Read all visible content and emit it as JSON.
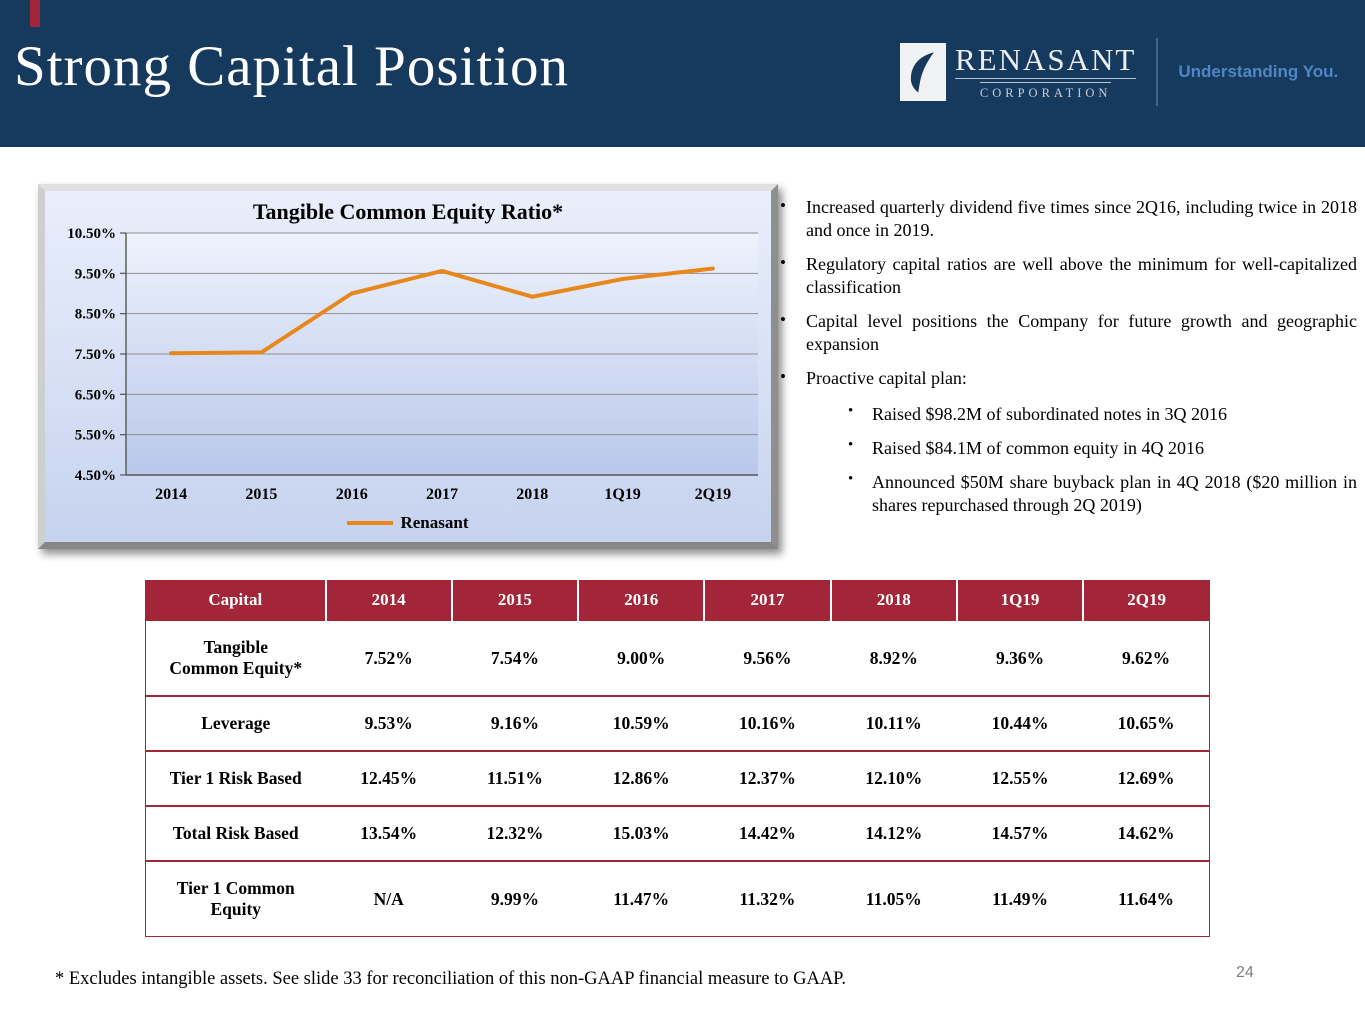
{
  "slide": {
    "title": "Strong Capital Position",
    "page_number": "24",
    "footnote": "* Excludes intangible assets.  See slide 33 for reconciliation of this non-GAAP financial measure to GAAP."
  },
  "logo": {
    "name": "RENASANT",
    "subname": "CORPORATION",
    "tagline": "Understanding You.",
    "icon": "leaf"
  },
  "colors": {
    "header_navy": "#16395e",
    "accent_red": "#a32638",
    "table_header_red": "#a32638",
    "line_orange": "#e8871c",
    "tagline_blue": "#4f87c5"
  },
  "bullets": [
    {
      "text": "Increased quarterly dividend five times since 2Q16, including twice in 2018 and once in 2019."
    },
    {
      "text": "Regulatory capital ratios are well above the minimum for well-capitalized classification"
    },
    {
      "text": "Capital level positions the Company for future growth and geographic expansion"
    },
    {
      "text": "Proactive capital plan:",
      "children": [
        "Raised $98.2M of subordinated notes in 3Q 2016",
        "Raised $84.1M of common equity in 4Q 2016",
        "Announced $50M share buyback plan in 4Q 2018 ($20 million in shares repurchased through 2Q 2019)"
      ]
    }
  ],
  "chart_data": {
    "type": "line",
    "title": "Tangible Common Equity Ratio*",
    "categories": [
      "2014",
      "2015",
      "2016",
      "2017",
      "2018",
      "1Q19",
      "2Q19"
    ],
    "series": [
      {
        "name": "Renasant",
        "values": [
          7.52,
          7.54,
          9.0,
          9.56,
          8.92,
          9.36,
          9.62
        ]
      }
    ],
    "ylim": [
      4.5,
      10.5
    ],
    "ytick_step": 1.0,
    "ytick_labels": [
      "10.50%",
      "9.50%",
      "8.50%",
      "7.50%",
      "6.50%",
      "5.50%",
      "4.50%"
    ],
    "grid": true,
    "legend_position": "bottom",
    "line_color": "#e8871c"
  },
  "table": {
    "headers": [
      "Capital",
      "2014",
      "2015",
      "2016",
      "2017",
      "2018",
      "1Q19",
      "2Q19"
    ],
    "rows": [
      {
        "label": "Tangible\nCommon Equity*",
        "values": [
          "7.52%",
          "7.54%",
          "9.00%",
          "9.56%",
          "8.92%",
          "9.36%",
          "9.62%"
        ]
      },
      {
        "label": "Leverage",
        "values": [
          "9.53%",
          "9.16%",
          "10.59%",
          "10.16%",
          "10.11%",
          "10.44%",
          "10.65%"
        ]
      },
      {
        "label": "Tier 1 Risk Based",
        "values": [
          "12.45%",
          "11.51%",
          "12.86%",
          "12.37%",
          "12.10%",
          "12.55%",
          "12.69%"
        ]
      },
      {
        "label": "Total Risk Based",
        "values": [
          "13.54%",
          "12.32%",
          "15.03%",
          "14.42%",
          "14.12%",
          "14.57%",
          "14.62%"
        ]
      },
      {
        "label": "Tier 1 Common\nEquity",
        "values": [
          "N/A",
          "9.99%",
          "11.47%",
          "11.32%",
          "11.05%",
          "11.49%",
          "11.64%"
        ]
      }
    ]
  }
}
